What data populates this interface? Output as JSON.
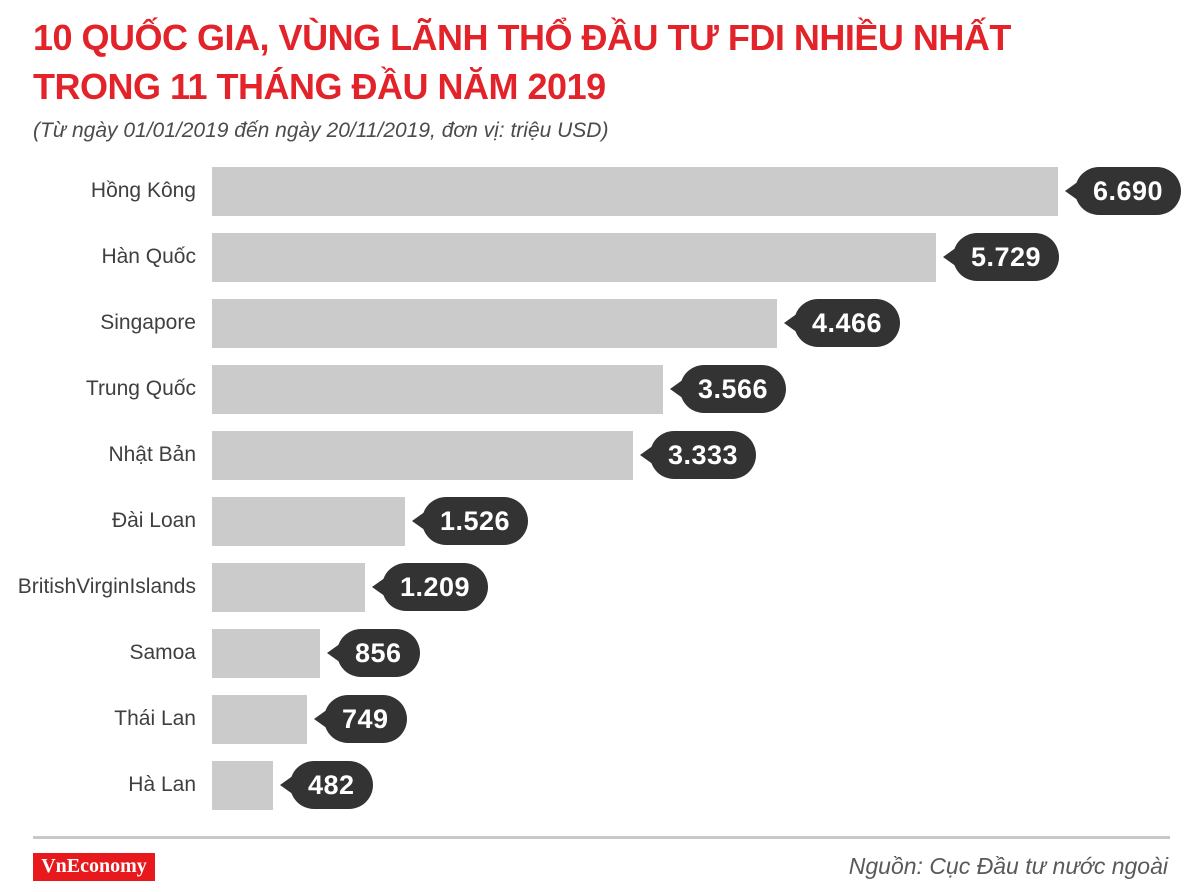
{
  "header": {
    "title_line1": "10 QUỐC GIA, VÙNG LÃNH THỔ ĐẦU TƯ FDI NHIỀU NHẤT",
    "title_line2": "TRONG 11 THÁNG ĐẦU NĂM 2019",
    "subtitle": "(Từ ngày 01/01/2019 đến ngày 20/11/2019, đơn vị: triệu USD)"
  },
  "chart_data": {
    "type": "bar",
    "orientation": "horizontal",
    "title": "10 QUỐC GIA, VÙNG LÃNH THỔ ĐẦU TƯ FDI NHIỀU NHẤT TRONG 11 THÁNG ĐẦU NĂM 2019",
    "subtitle": "(Từ ngày 01/01/2019 đến ngày 20/11/2019, đơn vị: triệu USD)",
    "unit": "triệu USD",
    "categories": [
      "Hồng Kông",
      "Hàn Quốc",
      "Singapore",
      "Trung Quốc",
      "Nhật Bản",
      "Đài Loan",
      "BritishVirginIslands",
      "Samoa",
      "Thái Lan",
      "Hà Lan"
    ],
    "values": [
      6690,
      5729,
      4466,
      3566,
      3333,
      1526,
      1209,
      856,
      749,
      482
    ],
    "value_labels": [
      "6.690",
      "5.729",
      "4.466",
      "3.566",
      "3.333",
      "1.526",
      "1.209",
      "856",
      "749",
      "482"
    ],
    "xlim": [
      0,
      6690
    ],
    "grid": false,
    "legend": false,
    "bar_color": "#cbcbcb",
    "badge_color": "#333333"
  },
  "footer": {
    "logo_text": "VnEconomy",
    "source": "Nguồn: Cục Đầu tư nước ngoài"
  },
  "colors": {
    "title_red": "#e2232a",
    "bar_gray": "#cbcbcb",
    "badge_dark": "#333333",
    "label_text": "#3f3f3f",
    "subtitle_text": "#4b4b4b",
    "source_text": "#58595b",
    "separator": "#c8c8c8",
    "logo_bg": "#e8191c",
    "logo_text_color": "#ffffff"
  }
}
